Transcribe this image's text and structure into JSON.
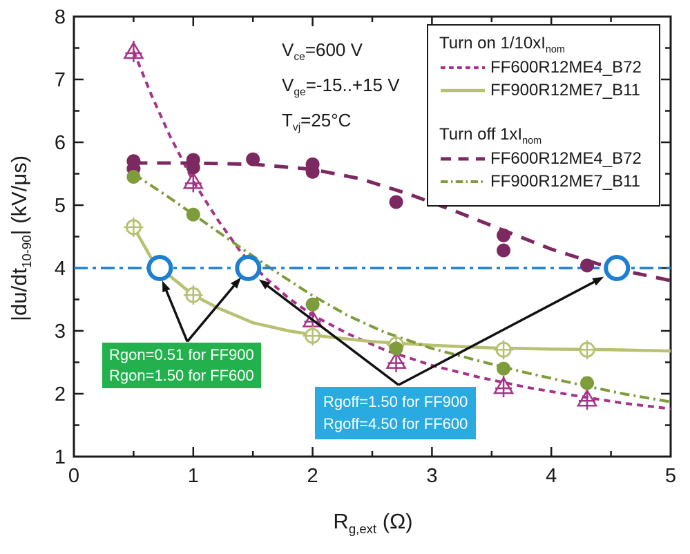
{
  "conditions": {
    "lines": [
      {
        "pre": "V",
        "sub": "ce",
        "post": "=600 V"
      },
      {
        "pre": "V",
        "sub": "ge",
        "post": "=-15..+15 V"
      },
      {
        "pre": "T",
        "sub": "vj",
        "post": "=25°C"
      }
    ]
  },
  "legend": {
    "group1_title_pre": "Turn on 1/10xI",
    "group1_title_sub": "nom",
    "group1_entry1": "FF600R12ME4_B72",
    "group1_entry2": "FF900R12ME7_B11",
    "group2_title_pre": "Turn off 1xI",
    "group2_title_sub": "nom",
    "group2_entry1": "FF600R12ME4_B72",
    "group2_entry2": "FF900R12ME7_B11"
  },
  "annotations": {
    "rgon_box": {
      "line1": "Rgon=0.51 for FF900",
      "line2": "Rgon=1.50 for FF600",
      "bg": "#22b14c"
    },
    "rgoff_box": {
      "line1": "Rgoff=1.50 for FF900",
      "line2": "Rgoff=4.50 for FF600",
      "bg": "#29abe2"
    }
  },
  "chart_data": {
    "type": "line",
    "xlabel": {
      "pre": "R",
      "sub": "g,ext",
      "post": " (Ω)"
    },
    "ylabel": {
      "pre": "|du/dt",
      "sub": "10-90",
      "post": "|  (kV/μs)"
    },
    "xlim": [
      0,
      5
    ],
    "ylim": [
      1,
      8
    ],
    "x_ticks": [
      0,
      1,
      2,
      3,
      4,
      5
    ],
    "y_ticks": [
      1,
      2,
      3,
      4,
      5,
      6,
      7,
      8
    ],
    "minor_tick_step": 0.5,
    "grid": false,
    "legend_position": "top-right",
    "series": [
      {
        "id": "ton_ff600",
        "name": "FF600R12ME4_B72",
        "group": "Turn on 1/10xInom",
        "color": "#a53388",
        "dash": [
          9,
          7
        ],
        "width": 4,
        "marker": "open-triangle-plus",
        "points": [
          [
            0.5,
            7.45
          ],
          [
            1.0,
            5.38
          ],
          [
            2.0,
            3.18
          ],
          [
            2.7,
            2.52
          ],
          [
            3.6,
            2.12
          ],
          [
            4.3,
            1.92
          ]
        ],
        "curve": [
          [
            0.5,
            7.45
          ],
          [
            0.65,
            6.75
          ],
          [
            0.8,
            6.12
          ],
          [
            1.0,
            5.38
          ],
          [
            1.2,
            4.78
          ],
          [
            1.4,
            4.25
          ],
          [
            1.6,
            3.85
          ],
          [
            1.8,
            3.52
          ],
          [
            2.0,
            3.25
          ],
          [
            2.3,
            2.95
          ],
          [
            2.6,
            2.7
          ],
          [
            3.0,
            2.45
          ],
          [
            3.4,
            2.26
          ],
          [
            3.8,
            2.1
          ],
          [
            4.2,
            1.97
          ],
          [
            4.6,
            1.85
          ],
          [
            5.0,
            1.76
          ]
        ]
      },
      {
        "id": "ton_ff900",
        "name": "FF900R12ME7_B11",
        "group": "Turn on 1/10xInom",
        "color": "#b8c172",
        "dash": null,
        "width": 4.5,
        "marker": "open-circle-cross",
        "points": [
          [
            0.5,
            4.65
          ],
          [
            1.0,
            3.57
          ],
          [
            2.0,
            2.92
          ],
          [
            2.7,
            2.78
          ],
          [
            3.6,
            2.7
          ],
          [
            4.3,
            2.7
          ]
        ],
        "curve": [
          [
            0.5,
            4.65
          ],
          [
            0.65,
            4.15
          ],
          [
            0.8,
            3.88
          ],
          [
            1.0,
            3.57
          ],
          [
            1.2,
            3.37
          ],
          [
            1.5,
            3.13
          ],
          [
            1.8,
            3.0
          ],
          [
            2.1,
            2.91
          ],
          [
            2.5,
            2.83
          ],
          [
            3.0,
            2.77
          ],
          [
            3.5,
            2.73
          ],
          [
            4.0,
            2.71
          ],
          [
            4.5,
            2.7
          ],
          [
            5.0,
            2.68
          ]
        ]
      },
      {
        "id": "toff_ff600",
        "name": "FF600R12ME4_B72",
        "group": "Turn off 1xInom",
        "color": "#7c2962",
        "dash": [
          20,
          14
        ],
        "width": 5,
        "marker": "filled-circle",
        "points": [
          [
            0.5,
            5.7
          ],
          [
            0.5,
            5.58
          ],
          [
            1.0,
            5.72
          ],
          [
            1.0,
            5.6
          ],
          [
            1.5,
            5.73
          ],
          [
            2.0,
            5.65
          ],
          [
            2.0,
            5.53
          ],
          [
            2.7,
            5.05
          ],
          [
            3.6,
            4.52
          ],
          [
            3.6,
            4.28
          ],
          [
            4.3,
            4.04
          ]
        ],
        "curve": [
          [
            0.5,
            5.67
          ],
          [
            1.0,
            5.67
          ],
          [
            1.5,
            5.65
          ],
          [
            2.0,
            5.57
          ],
          [
            2.4,
            5.42
          ],
          [
            2.8,
            5.18
          ],
          [
            3.2,
            4.9
          ],
          [
            3.6,
            4.6
          ],
          [
            4.0,
            4.3
          ],
          [
            4.4,
            4.06
          ],
          [
            4.7,
            3.92
          ],
          [
            5.0,
            3.8
          ]
        ]
      },
      {
        "id": "toff_ff900",
        "name": "FF900R12ME7_B11",
        "group": "Turn off 1xInom",
        "color": "#7f9c3c",
        "dash": [
          14,
          6,
          3,
          6
        ],
        "width": 4,
        "marker": "filled-circle",
        "points": [
          [
            0.5,
            5.45
          ],
          [
            1.0,
            4.85
          ],
          [
            2.0,
            3.42
          ],
          [
            2.7,
            2.72
          ],
          [
            3.6,
            2.4
          ],
          [
            4.3,
            2.17
          ]
        ],
        "curve": [
          [
            0.5,
            5.5
          ],
          [
            0.8,
            5.12
          ],
          [
            1.1,
            4.72
          ],
          [
            1.4,
            4.32
          ],
          [
            1.7,
            3.93
          ],
          [
            2.0,
            3.56
          ],
          [
            2.3,
            3.24
          ],
          [
            2.6,
            2.98
          ],
          [
            3.0,
            2.72
          ],
          [
            3.4,
            2.52
          ],
          [
            3.8,
            2.33
          ],
          [
            4.2,
            2.16
          ],
          [
            4.6,
            2.0
          ],
          [
            5.0,
            1.87
          ]
        ]
      }
    ],
    "ref_line": {
      "y": 4,
      "color": "#1d7fd4",
      "dash": [
        20,
        7,
        5,
        7
      ],
      "width": 3.5
    },
    "highlight_circles": {
      "y": 4,
      "x_values": [
        0.72,
        1.46,
        4.55
      ],
      "color": "#1d7fd4",
      "radius": 16
    },
    "arrows": [
      {
        "from": [
          0.95,
          2.83
        ],
        "to": [
          0.74,
          3.8
        ]
      },
      {
        "from": [
          0.95,
          2.83
        ],
        "to": [
          1.4,
          3.85
        ]
      },
      {
        "from": [
          2.72,
          2.14
        ],
        "to": [
          1.55,
          3.82
        ]
      },
      {
        "from": [
          2.72,
          2.14
        ],
        "to": [
          4.44,
          3.86
        ]
      }
    ]
  }
}
